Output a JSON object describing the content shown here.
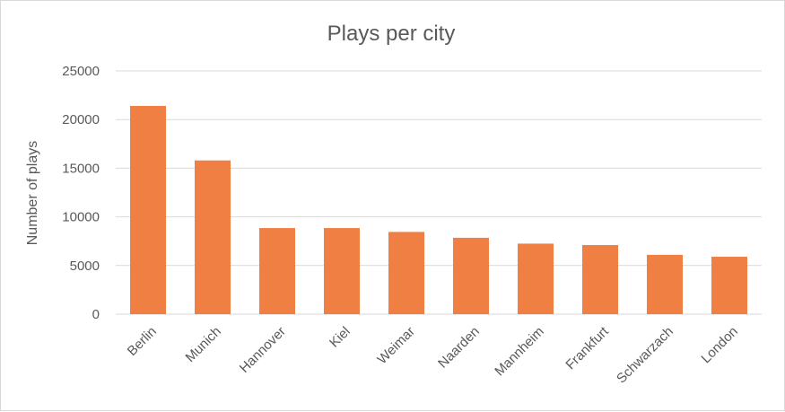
{
  "chart_data": {
    "type": "bar",
    "title": "Plays per city",
    "xlabel": "",
    "ylabel": "Number of plays",
    "categories": [
      "Berlin",
      "Munich",
      "Hannover",
      "Kiel",
      "Weimar",
      "Naarden",
      "Mannheim",
      "Frankfurt",
      "Schwarzach",
      "London"
    ],
    "values": [
      21400,
      15800,
      8850,
      8850,
      8450,
      7850,
      7250,
      7100,
      6100,
      5900
    ],
    "ylim": [
      0,
      25000
    ],
    "yticks": [
      "0",
      "5000",
      "10000",
      "15000",
      "20000",
      "25000"
    ],
    "grid": true,
    "legend": "none",
    "bar_color": "#F07F43"
  }
}
